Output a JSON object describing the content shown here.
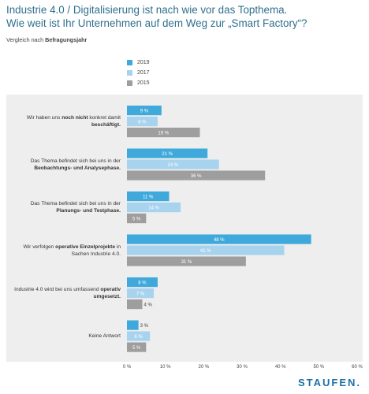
{
  "chart_data": {
    "type": "bar",
    "orientation": "horizontal",
    "title_line1": "Industrie 4.0 / Digitalisierung ist nach wie vor das Topthema.",
    "title_line2": "Wie weit ist Ihr Unternehmen auf dem Weg zur „Smart Factory“?",
    "subtitle_prefix": "Vergleich nach ",
    "subtitle_bold": "Befragungsjahr",
    "categories": [
      {
        "before": "Wir haben uns ",
        "bold1": "noch nicht",
        "middle": " konkret damit ",
        "bold2": "beschäftigt."
      },
      {
        "before": "Das Thema befindet sich bei uns in der ",
        "bold1": "Beobachtungs- und Analysephase.",
        "middle": "",
        "bold2": ""
      },
      {
        "before": "Das Thema befindet sich bei uns in der ",
        "bold1": "Planungs- und Testphase.",
        "middle": "",
        "bold2": ""
      },
      {
        "before": "Wir verfolgen ",
        "bold1": "operative Einzelprojekte",
        "middle": " in Sachen Industrie 4.0.",
        "bold2": ""
      },
      {
        "before": "Industrie 4.0 wird bei uns umfassend ",
        "bold1": "operativ umgesetzt.",
        "middle": "",
        "bold2": ""
      },
      {
        "before": "Keine Antwort",
        "bold1": "",
        "middle": "",
        "bold2": ""
      }
    ],
    "series": [
      {
        "name": "2019",
        "color": "#3fa9dc",
        "values": [
          9,
          21,
          11,
          48,
          8,
          3
        ]
      },
      {
        "name": "2017",
        "color": "#a8d3ef",
        "values": [
          8,
          24,
          14,
          41,
          7,
          6
        ]
      },
      {
        "name": "2015",
        "color": "#9e9e9e",
        "values": [
          19,
          36,
          5,
          31,
          4,
          5
        ]
      }
    ],
    "xlim": [
      0,
      60
    ],
    "xticks": [
      "0 %",
      "10 %",
      "20 %",
      "30 %",
      "40 %",
      "50 %",
      "60 %"
    ],
    "value_suffix": " %",
    "grid": false,
    "legend_position": "top-left"
  },
  "brand": {
    "logo_text": "STAUFEN."
  }
}
